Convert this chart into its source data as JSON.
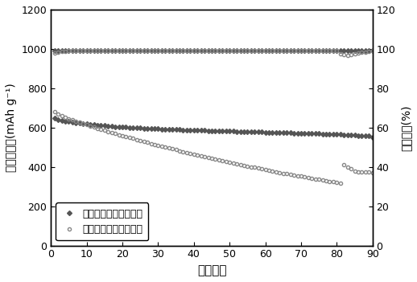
{
  "title": "",
  "xlabel": "循环圈数",
  "ylabel_left": "放电比容量(mAh g⁻¹)",
  "ylabel_right": "库伦效率(%)",
  "xlim": [
    0,
    90
  ],
  "ylim_left": [
    0,
    1200
  ],
  "ylim_right": [
    0,
    120
  ],
  "xticks": [
    0,
    10,
    20,
    30,
    40,
    50,
    60,
    70,
    80,
    90
  ],
  "yticks_left": [
    0,
    200,
    400,
    600,
    800,
    1000,
    1200
  ],
  "yticks_right": [
    0,
    20,
    40,
    60,
    80,
    100,
    120
  ],
  "series1_label": "发明硫化聚丙烯腈电池",
  "series2_label": "普通硫化聚丙烯腈电池",
  "color_filled": "#555555",
  "color_open": "#888888",
  "capacity1": [
    650,
    640,
    635,
    632,
    630,
    628,
    625,
    622,
    620,
    618,
    616,
    615,
    613,
    611,
    610,
    608,
    607,
    605,
    604,
    603,
    602,
    601,
    600,
    599,
    598,
    597,
    596,
    595,
    594,
    594,
    593,
    592,
    591,
    590,
    590,
    589,
    588,
    588,
    587,
    587,
    586,
    585,
    585,
    584,
    584,
    583,
    583,
    582,
    582,
    581,
    581,
    580,
    580,
    579,
    579,
    578,
    578,
    577,
    577,
    576,
    576,
    575,
    575,
    574,
    574,
    573,
    573,
    572,
    572,
    571,
    571,
    570,
    570,
    569,
    569,
    568,
    568,
    567,
    567,
    566,
    565,
    564,
    563,
    562,
    561,
    560,
    559,
    558,
    557,
    552
  ],
  "capacity2": [
    680,
    668,
    660,
    652,
    645,
    638,
    632,
    626,
    620,
    614,
    608,
    602,
    597,
    591,
    586,
    580,
    575,
    570,
    564,
    559,
    554,
    549,
    544,
    539,
    534,
    529,
    524,
    519,
    514,
    510,
    505,
    500,
    496,
    491,
    487,
    482,
    478,
    473,
    469,
    465,
    460,
    456,
    452,
    447,
    443,
    439,
    435,
    431,
    427,
    423,
    419,
    415,
    411,
    408,
    404,
    400,
    397,
    393,
    389,
    386,
    382,
    379,
    375,
    372,
    368,
    365,
    362,
    358,
    355,
    352,
    349,
    345,
    342,
    339,
    336,
    333,
    330,
    327,
    324,
    321,
    318,
    410,
    400,
    390,
    380,
    375,
    375,
    374,
    373,
    370
  ],
  "efficiency1": [
    99,
    99.2,
    99.3,
    99.1,
    99.2,
    99.3,
    99.1,
    99.2,
    99.3,
    99.2,
    99.1,
    99.2,
    99.3,
    99.2,
    99.1,
    99.2,
    99.3,
    99.2,
    99.1,
    99.2,
    99.3,
    99.2,
    99.1,
    99.2,
    99.3,
    99.2,
    99.1,
    99.2,
    99.3,
    99.2,
    99.1,
    99.2,
    99.3,
    99.2,
    99.1,
    99.2,
    99.3,
    99.2,
    99.1,
    99.2,
    99.3,
    99.2,
    99.1,
    99.2,
    99.3,
    99.2,
    99.1,
    99.2,
    99.3,
    99.2,
    99.1,
    99.2,
    99.3,
    99.2,
    99.1,
    99.2,
    99.3,
    99.2,
    99.1,
    99.2,
    99.3,
    99.2,
    99.1,
    99.2,
    99.3,
    99.2,
    99.1,
    99.2,
    99.3,
    99.2,
    99.1,
    99.2,
    99.3,
    99.2,
    99.1,
    99.2,
    99.3,
    99.2,
    99.1,
    99.2,
    99.3,
    99.2,
    99.3,
    99.2,
    99.1,
    99.2,
    99.3,
    99.2,
    99.1,
    99.2
  ],
  "efficiency2": [
    98,
    98.5,
    98.8,
    98.9,
    99.0,
    99.0,
    99.1,
    99.0,
    99.0,
    99.1,
    99.0,
    99.0,
    99.1,
    99.0,
    99.0,
    99.1,
    99.0,
    99.0,
    99.1,
    99.0,
    99.0,
    99.1,
    99.0,
    99.0,
    99.1,
    99.0,
    99.0,
    99.1,
    99.0,
    99.0,
    99.1,
    99.0,
    99.0,
    99.1,
    99.0,
    99.0,
    99.1,
    99.0,
    99.0,
    99.1,
    99.0,
    99.0,
    99.1,
    99.0,
    99.0,
    99.1,
    99.0,
    99.0,
    99.1,
    99.0,
    99.0,
    99.1,
    99.0,
    99.0,
    99.1,
    99.0,
    99.0,
    99.1,
    99.0,
    99.0,
    99.1,
    99.0,
    99.0,
    99.1,
    99.0,
    99.0,
    99.1,
    99.0,
    99.0,
    99.1,
    99.0,
    99.0,
    99.1,
    99.0,
    99.0,
    99.1,
    99.0,
    99.0,
    99.1,
    99.0,
    97.5,
    97.0,
    96.5,
    97.0,
    97.5,
    98.0,
    98.2,
    98.5,
    98.8,
    99.0
  ]
}
